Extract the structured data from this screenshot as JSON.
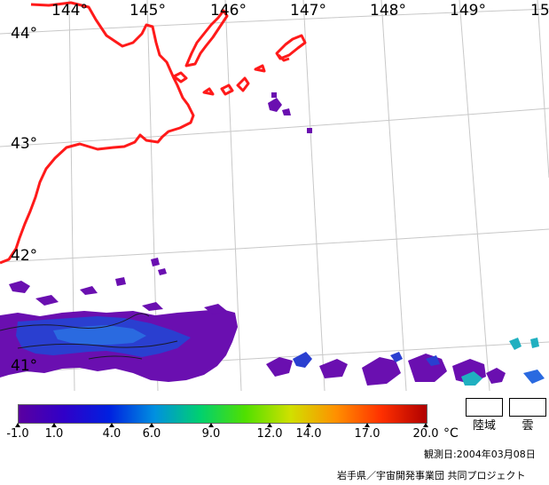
{
  "map": {
    "lon_labels": [
      "144°",
      "145°",
      "146°",
      "147°",
      "148°",
      "149°",
      "15"
    ],
    "lat_labels": [
      "44°",
      "43°",
      "42°",
      "41°"
    ],
    "colors": {
      "coastline": "#ff1a1a",
      "graticule": "#c8c8c8",
      "sst_cold": "#6a0fb0",
      "sst_mid": "#2050d0",
      "sst_warm": "#20b0c0"
    }
  },
  "colorbar": {
    "ticks": [
      "-1.0",
      "1.0",
      "4.0",
      "6.0",
      "9.0",
      "12.0",
      "14.0",
      "17.0",
      "20.0"
    ],
    "unit": "°C",
    "stops": [
      "#5a00a0",
      "#3000c8",
      "#0020e0",
      "#0090e0",
      "#00d070",
      "#50e000",
      "#d0e000",
      "#ff9000",
      "#ff3000",
      "#b00000"
    ]
  },
  "legend": {
    "land_label": "陸域",
    "cloud_label": "雲"
  },
  "footer": {
    "observation_date": "観測日:2004年03月08日",
    "credit": "岩手県／宇宙開発事業団 共同プロジェクト"
  }
}
